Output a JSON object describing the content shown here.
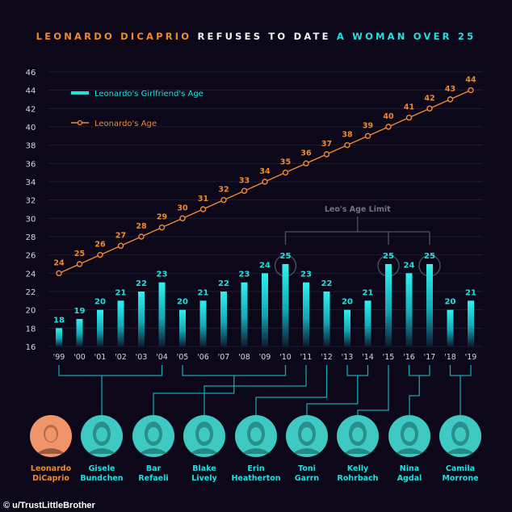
{
  "title": {
    "part1": "LEONARDO DICAPRIO",
    "part2": " REFUSES TO DATE ",
    "part3": "A WOMAN OVER 25"
  },
  "colors": {
    "background": "#0c0819",
    "leo": "#f08a32",
    "girlfriend": "#22e0e0",
    "grid": "#1f1c33",
    "annotation": "#4a5566"
  },
  "chart_data": {
    "type": "bar+line",
    "categories": [
      "'99",
      "'00",
      "'01",
      "'02",
      "'03",
      "'04",
      "'05",
      "'06",
      "'07",
      "'08",
      "'09",
      "'10",
      "'11",
      "'12",
      "'13",
      "'14",
      "'15",
      "'16",
      "'17",
      "'18",
      "'19"
    ],
    "series": [
      {
        "name": "Leonardo's Girlfriend's Age",
        "type": "bar",
        "values": [
          18,
          19,
          20,
          21,
          22,
          23,
          20,
          21,
          22,
          23,
          24,
          25,
          23,
          22,
          20,
          21,
          25,
          24,
          25,
          20,
          21
        ]
      },
      {
        "name": "Leonardo's Age",
        "type": "line",
        "values": [
          24,
          25,
          26,
          27,
          28,
          29,
          30,
          31,
          32,
          33,
          34,
          35,
          36,
          37,
          38,
          39,
          40,
          41,
          42,
          43,
          44
        ]
      }
    ],
    "yticks": [
      16,
      18,
      20,
      22,
      24,
      26,
      28,
      30,
      32,
      34,
      36,
      38,
      40,
      42,
      44,
      46
    ],
    "ylim": [
      16,
      46
    ],
    "grid": true,
    "legend": "top-left",
    "annotation": {
      "label": "Leo's Age Limit",
      "value": 25,
      "categories": [
        "'10",
        "'15",
        "'17"
      ]
    }
  },
  "people": [
    {
      "name_line1": "Leonardo",
      "name_line2": "DiCaprio",
      "is_leo": true
    },
    {
      "name_line1": "Gisele",
      "name_line2": "Bundchen",
      "years": [
        "'99",
        "'04"
      ]
    },
    {
      "name_line1": "Bar",
      "name_line2": "Refaeli",
      "years": [
        "'05",
        "'10"
      ]
    },
    {
      "name_line1": "Blake",
      "name_line2": "Lively",
      "years": [
        "'11"
      ]
    },
    {
      "name_line1": "Erin",
      "name_line2": "Heatherton",
      "years": [
        "'12"
      ]
    },
    {
      "name_line1": "Toni",
      "name_line2": "Garrn",
      "years": [
        "'13",
        "'14"
      ]
    },
    {
      "name_line1": "Kelly",
      "name_line2": "Rohrbach",
      "years": [
        "'15"
      ]
    },
    {
      "name_line1": "Nina",
      "name_line2": "Agdal",
      "years": [
        "'16",
        "'17"
      ]
    },
    {
      "name_line1": "Camila",
      "name_line2": "Morrone",
      "years": [
        "'18",
        "'19"
      ]
    }
  ],
  "credit": "© u/TrustLittleBrother"
}
